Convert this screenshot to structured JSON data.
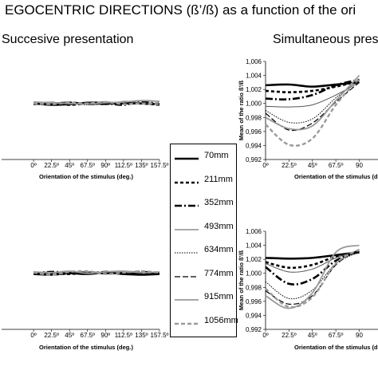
{
  "title": "EGOCENTRIC DIRECTIONS (ß’/ß) as a function of the ori",
  "subtitles": {
    "left": "Succesive presentation",
    "right": "Simultaneous prese"
  },
  "legend": [
    {
      "label": "70mm",
      "color": "#000000",
      "dash": "",
      "width": 2.6
    },
    {
      "label": "211mm",
      "color": "#000000",
      "dash": "4,3",
      "width": 2.6
    },
    {
      "label": "352mm",
      "color": "#000000",
      "dash": "9,3,2,3",
      "width": 2.6
    },
    {
      "label": "493mm",
      "color": "#555555",
      "dash": "",
      "width": 1
    },
    {
      "label": "634mm",
      "color": "#000000",
      "dash": "1.5,1.5",
      "width": 1
    },
    {
      "label": "774mm",
      "color": "#000000",
      "dash": "7,3",
      "width": 1.2
    },
    {
      "label": "915mm",
      "color": "#9a9a9a",
      "dash": "",
      "width": 1.8
    },
    {
      "label": "1056mm",
      "color": "#9a9a9a",
      "dash": "5,3",
      "width": 2.4
    }
  ],
  "chart_data": [
    {
      "type": "line",
      "panel": "top-left",
      "xlabel": "Orientation of the stimulus (deg.)",
      "ylabel": "",
      "x_ticks": [
        "0º",
        "22.5º",
        "45º",
        "67.5º",
        "90º",
        "112.5º",
        "135º",
        "157.5º"
      ],
      "y_ticks": [],
      "ylim": [
        0.992,
        1.006
      ],
      "x": [
        0,
        22.5,
        45,
        67.5,
        90,
        112.5,
        135,
        157.5
      ],
      "series": [
        {
          "name": "70mm",
          "values": [
            1.0,
            0.9998,
            0.9999,
            1.0001,
            1.0001,
            1.0,
            1.0,
            0.9999
          ]
        },
        {
          "name": "211mm",
          "values": [
            0.9999,
            1.0001,
            0.9998,
            1.0,
            0.9999,
            1.0001,
            1.0,
            0.9998
          ]
        },
        {
          "name": "352mm",
          "values": [
            1.0001,
            1.0,
            1.0001,
            0.9999,
            1.0,
            0.9998,
            1.0002,
            0.9999
          ]
        },
        {
          "name": "493mm",
          "values": [
            1.0,
            1.0002,
            0.9999,
            1.0001,
            0.9998,
            1.0003,
            1.0001,
            1.0
          ]
        },
        {
          "name": "634mm",
          "values": [
            1.0001,
            0.9999,
            1.0,
            0.9998,
            1.0002,
            1.0,
            0.9999,
            1.0001
          ]
        },
        {
          "name": "774mm",
          "values": [
            0.9999,
            1.0,
            1.0002,
            1.0,
            0.9999,
            1.0001,
            1.0,
            0.9999
          ]
        },
        {
          "name": "915mm",
          "values": [
            1.0002,
            1.0001,
            1.0,
            0.9999,
            1.0001,
            1.0002,
            1.0004,
            1.0003
          ]
        },
        {
          "name": "1056mm",
          "values": [
            1.0,
            0.9999,
            1.0001,
            1.0,
            1.0002,
            0.9999,
            1.0,
            0.9999
          ]
        }
      ]
    },
    {
      "type": "line",
      "panel": "top-right",
      "xlabel": "Orientation of the stimulus (deg.)",
      "ylabel": "Mean of the ratio ß'/ß",
      "x_ticks": [
        "0º",
        "22.5º",
        "45º",
        "67.5º",
        "90"
      ],
      "y_ticks": [
        "1,006",
        "1,004",
        "1,002",
        "1,000",
        "0,998",
        "0,996",
        "0,994",
        "0,992"
      ],
      "ylim": [
        0.992,
        1.006
      ],
      "x": [
        0,
        22.5,
        45,
        67.5,
        90
      ],
      "series": [
        {
          "name": "70mm",
          "values": [
            1.0026,
            1.0027,
            1.0024,
            1.0027,
            1.003
          ]
        },
        {
          "name": "211mm",
          "values": [
            1.0018,
            1.0016,
            1.0018,
            1.0024,
            1.0032
          ]
        },
        {
          "name": "352mm",
          "values": [
            1.0007,
            1.0006,
            1.0012,
            1.0026,
            1.0034
          ]
        },
        {
          "name": "493mm",
          "values": [
            0.9996,
            0.9995,
            0.9998,
            1.0012,
            1.003
          ]
        },
        {
          "name": "634mm",
          "values": [
            0.999,
            0.9973,
            0.9978,
            1.0008,
            1.0034
          ]
        },
        {
          "name": "774mm",
          "values": [
            0.9986,
            0.9962,
            0.9972,
            1.0002,
            1.003
          ]
        },
        {
          "name": "915mm",
          "values": [
            0.998,
            0.9964,
            0.9968,
            1.0004,
            1.004
          ]
        },
        {
          "name": "1056mm",
          "values": [
            0.997,
            0.9941,
            0.995,
            0.9998,
            1.0036
          ]
        }
      ]
    },
    {
      "type": "line",
      "panel": "bottom-left",
      "xlabel": "Orientation of the stimulus (deg.)",
      "ylabel": "",
      "x_ticks": [
        "0º",
        "22.5º",
        "45º",
        "67.5º",
        "90º",
        "112.5º",
        "135º",
        "157.5º"
      ],
      "y_ticks": [],
      "ylim": [
        0.992,
        1.006
      ],
      "x": [
        0,
        22.5,
        45,
        67.5,
        90,
        112.5,
        135,
        157.5
      ],
      "series": [
        {
          "name": "70mm",
          "values": [
            0.9999,
            0.9998,
            1.0,
            0.9999,
            1.0001,
            0.9999,
            0.9998,
            0.9999
          ]
        },
        {
          "name": "211mm",
          "values": [
            1.0001,
            1.0,
            0.9999,
            1.0001,
            1.0,
            1.0001,
            1.0,
            1.0001
          ]
        },
        {
          "name": "352mm",
          "values": [
            1.0,
            1.0002,
            1.0001,
            1.0,
            1.0002,
            1.0001,
            1.0002,
            1.0
          ]
        },
        {
          "name": "493mm",
          "values": [
            1.0002,
            1.0001,
            1.0002,
            1.0001,
            1.0,
            1.0002,
            1.0001,
            1.0002
          ]
        },
        {
          "name": "634mm",
          "values": [
            1.0001,
            1.0002,
            1.0,
            1.0002,
            1.0001,
            1.0,
            1.0002,
            1.0001
          ]
        },
        {
          "name": "774mm",
          "values": [
            1.0,
            0.9999,
            1.0001,
            1.0002,
            1.0,
            1.0001,
            1.0,
            1.0002
          ]
        },
        {
          "name": "915mm",
          "values": [
            1.0002,
            1.0001,
            1.0003,
            1.0,
            1.0002,
            1.0003,
            1.0001,
            1.0002
          ]
        },
        {
          "name": "1056mm",
          "values": [
            1.0001,
            0.9998,
            1.0002,
            1.0003,
            0.9999,
            1.0001,
            1.0003,
            1.0001
          ]
        }
      ]
    },
    {
      "type": "line",
      "panel": "bottom-right",
      "xlabel": "Orientation of the stimulus (deg.)",
      "ylabel": "Mean of the ratio ß'/ß",
      "x_ticks": [
        "0º",
        "22.5º",
        "45º",
        "67.5º",
        "90"
      ],
      "y_ticks": [
        "1,006",
        "1,004",
        "1,002",
        "1,000",
        "0,998",
        "0,996",
        "0,994",
        "0,992"
      ],
      "ylim": [
        0.992,
        1.006
      ],
      "x": [
        0,
        22.5,
        45,
        67.5,
        90
      ],
      "series": [
        {
          "name": "70mm",
          "values": [
            1.0022,
            1.0021,
            1.0022,
            1.0026,
            1.003
          ]
        },
        {
          "name": "211mm",
          "values": [
            1.0016,
            1.0008,
            1.0012,
            1.0024,
            1.003
          ]
        },
        {
          "name": "352mm",
          "values": [
            1.0009,
            0.9985,
            0.9992,
            1.0018,
            1.0032
          ]
        },
        {
          "name": "493mm",
          "values": [
            1.0014,
            1.0002,
            1.0006,
            1.0022,
            1.0033
          ]
        },
        {
          "name": "634mm",
          "values": [
            0.9988,
            0.9964,
            0.9976,
            1.0014,
            1.003
          ]
        },
        {
          "name": "774mm",
          "values": [
            0.9975,
            0.9956,
            0.9968,
            1.0012,
            1.0034
          ]
        },
        {
          "name": "915mm",
          "values": [
            0.9968,
            0.995,
            0.9972,
            1.003,
            1.004
          ]
        },
        {
          "name": "1056mm",
          "values": [
            0.9978,
            0.9952,
            0.9966,
            1.0014,
            1.0034
          ]
        }
      ]
    }
  ]
}
